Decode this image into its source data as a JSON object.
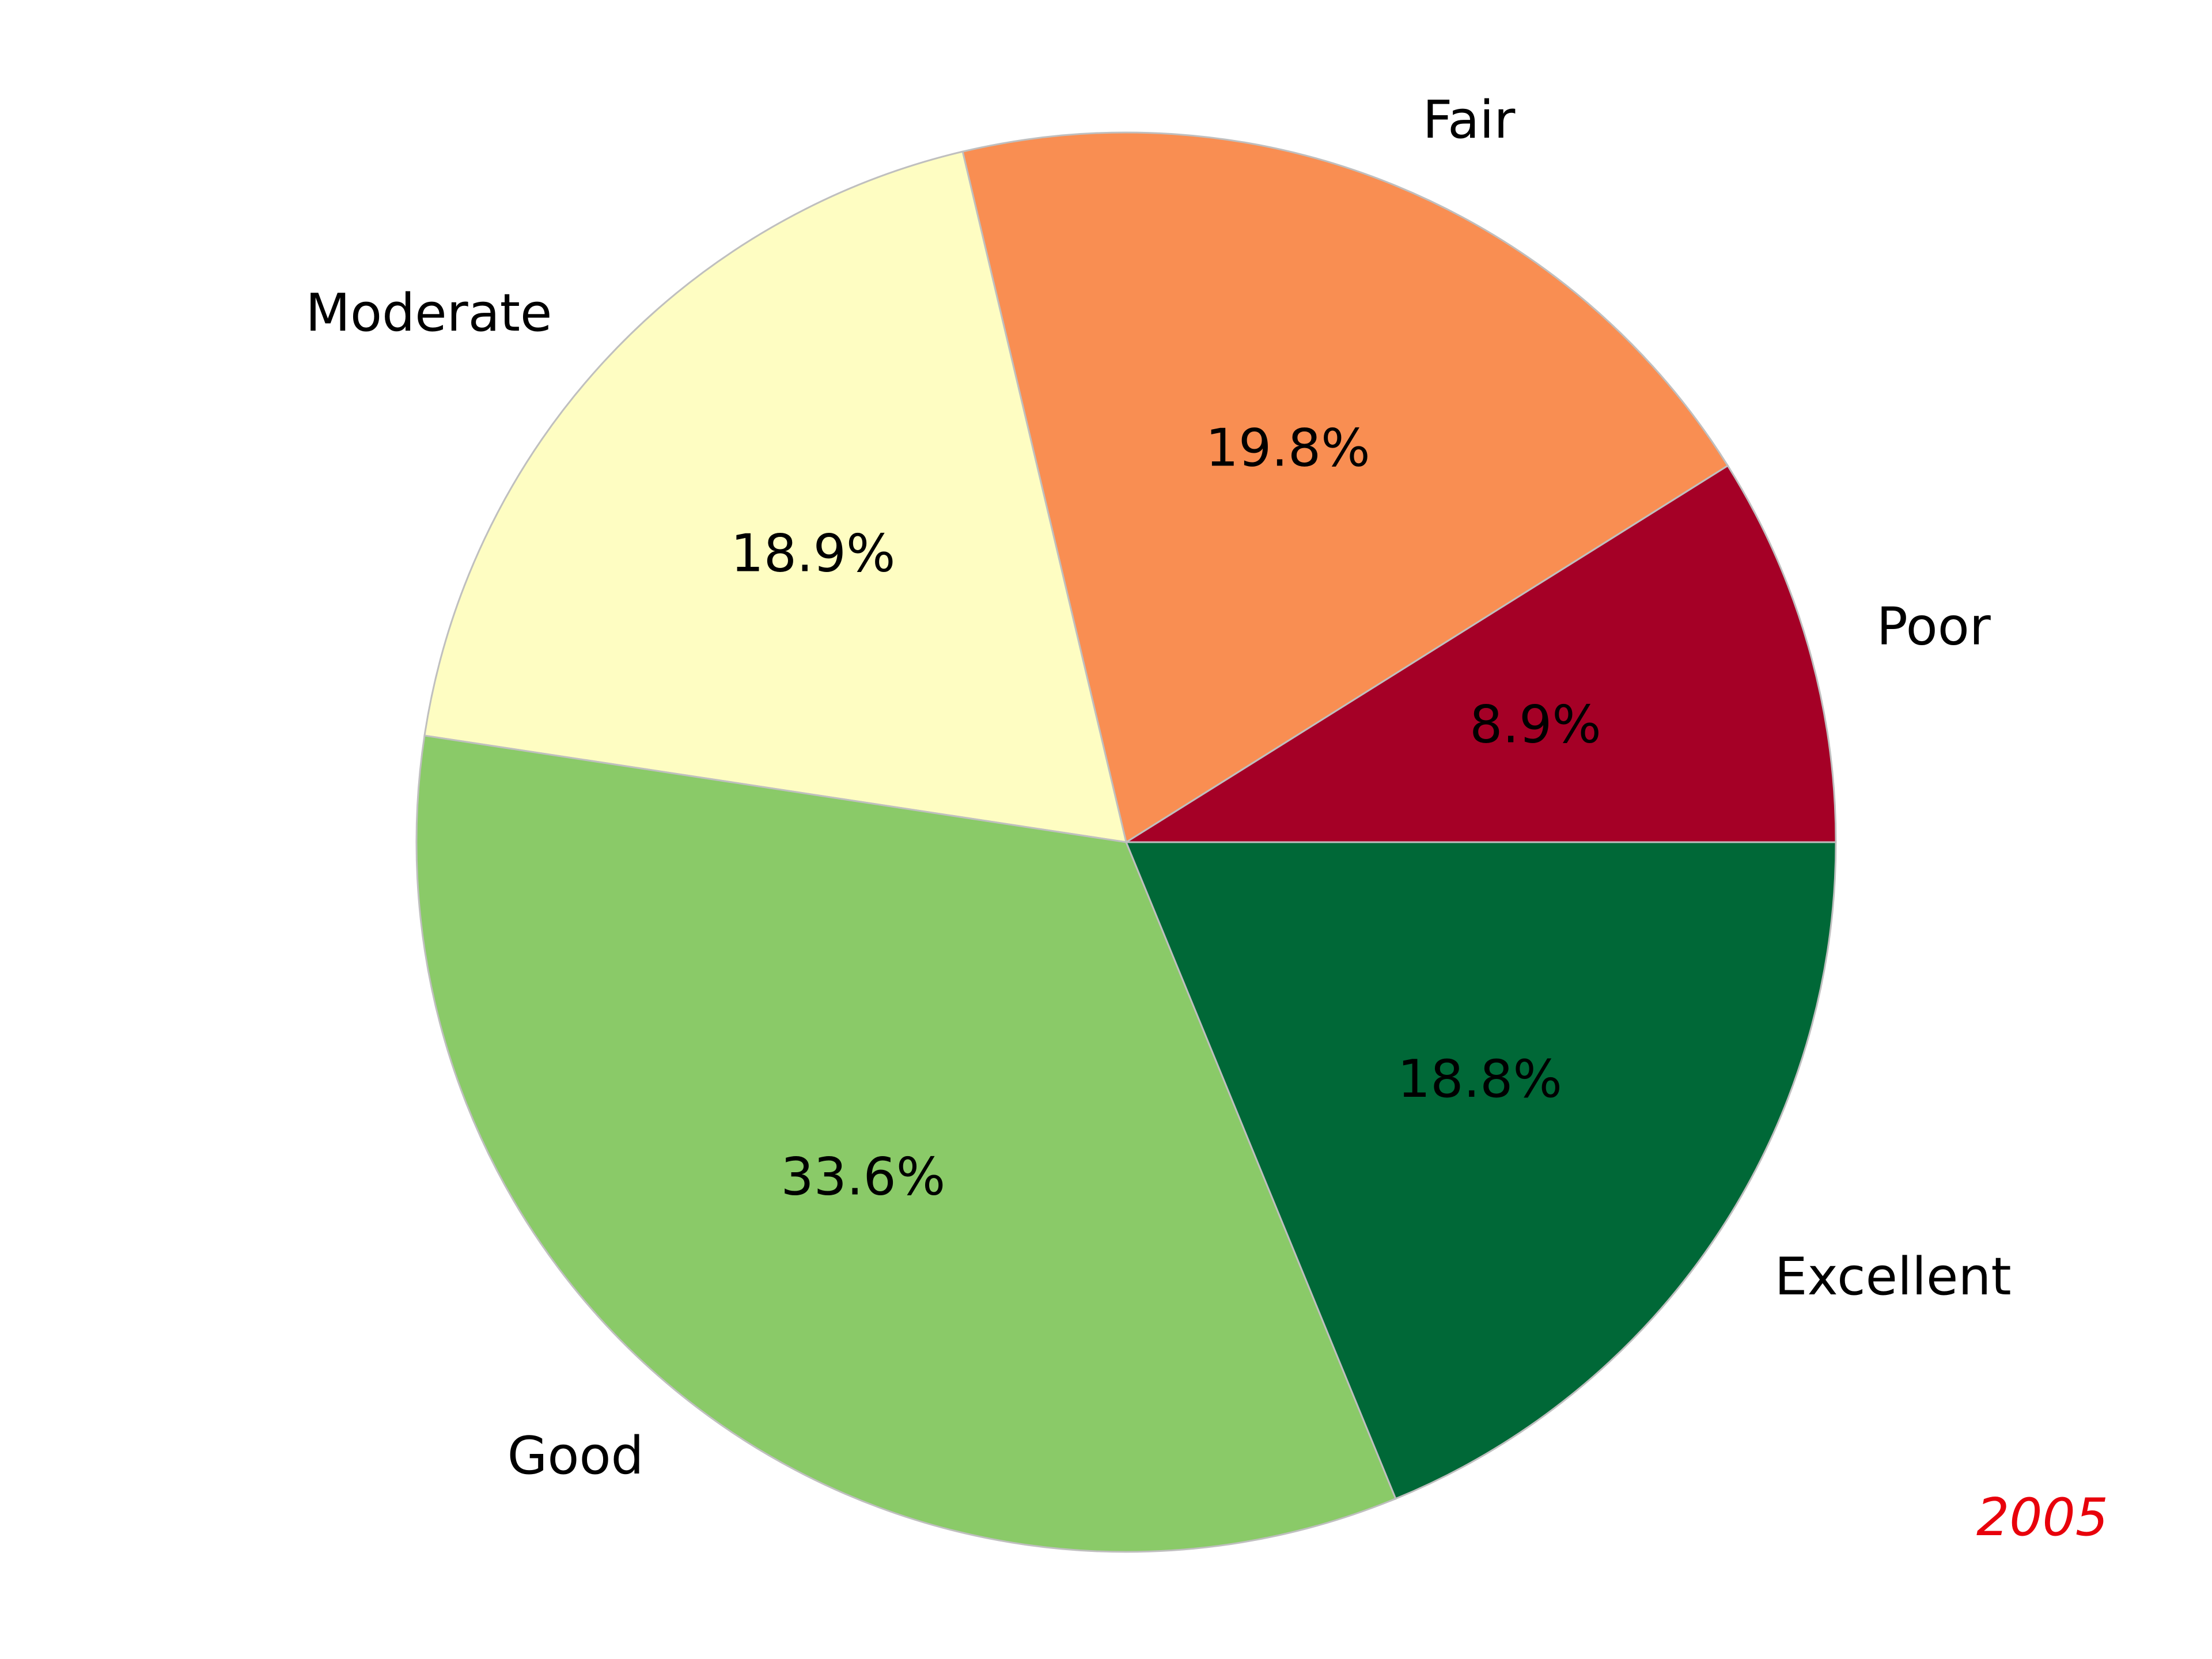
{
  "chart_data": {
    "type": "pie",
    "categories": [
      "Poor",
      "Fair",
      "Moderate",
      "Good",
      "Excellent"
    ],
    "values": [
      8.9,
      19.8,
      18.9,
      33.6,
      18.8
    ],
    "value_labels": [
      "8.9%",
      "19.8%",
      "18.9%",
      "33.6%",
      "18.8%"
    ],
    "colors": [
      "#a50026",
      "#f98e52",
      "#fefdc2",
      "#8aca68",
      "#006837"
    ],
    "edge_color": "#bfbfbf",
    "start_angle_deg": 0,
    "direction": "counterclockwise",
    "annotation": {
      "text": "2005",
      "color": "#e8000b",
      "placement": "bottom-right"
    }
  }
}
